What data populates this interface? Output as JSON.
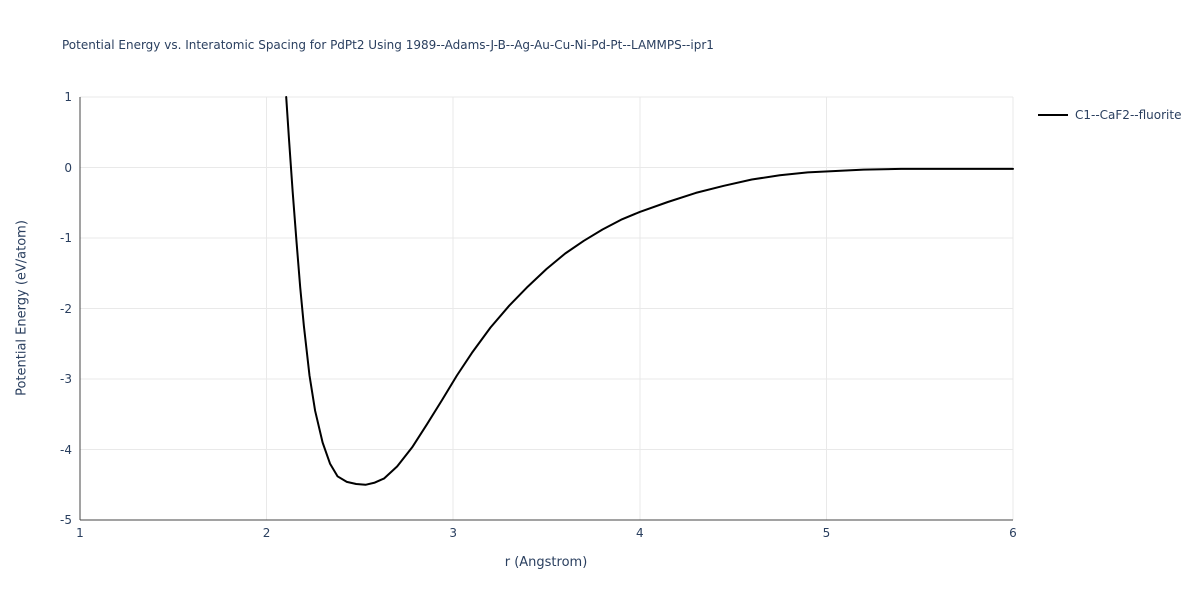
{
  "chart_data": {
    "type": "line",
    "title": "Potential Energy vs. Interatomic Spacing for PdPt2 Using 1989--Adams-J-B--Ag-Au-Cu-Ni-Pd-Pt--LAMMPS--ipr1",
    "xlabel": "r (Angstrom)",
    "ylabel": "Potential Energy (eV/atom)",
    "xlim": [
      1,
      6
    ],
    "ylim": [
      -5,
      1
    ],
    "xticks": [
      1,
      2,
      3,
      4,
      5,
      6
    ],
    "yticks": [
      1,
      0,
      -1,
      -2,
      -3,
      -4,
      -5
    ],
    "grid": true,
    "legend_position": "top-right",
    "series": [
      {
        "name": "C1--CaF2--fluorite",
        "color": "#000000",
        "x": [
          2.105,
          2.12,
          2.14,
          2.16,
          2.18,
          2.2,
          2.23,
          2.26,
          2.3,
          2.34,
          2.38,
          2.43,
          2.48,
          2.53,
          2.58,
          2.63,
          2.7,
          2.78,
          2.86,
          2.94,
          3.02,
          3.1,
          3.2,
          3.3,
          3.4,
          3.5,
          3.6,
          3.7,
          3.8,
          3.9,
          4.0,
          4.15,
          4.3,
          4.45,
          4.6,
          4.75,
          4.9,
          5.05,
          5.2,
          5.4,
          5.6,
          5.8,
          6.0
        ],
        "y": [
          1.0,
          0.4,
          -0.35,
          -1.05,
          -1.7,
          -2.25,
          -2.95,
          -3.45,
          -3.9,
          -4.2,
          -4.38,
          -4.46,
          -4.49,
          -4.5,
          -4.47,
          -4.41,
          -4.24,
          -3.97,
          -3.64,
          -3.3,
          -2.95,
          -2.63,
          -2.27,
          -1.96,
          -1.69,
          -1.44,
          -1.22,
          -1.04,
          -0.88,
          -0.74,
          -0.63,
          -0.49,
          -0.36,
          -0.26,
          -0.17,
          -0.11,
          -0.07,
          -0.05,
          -0.03,
          -0.02,
          -0.02,
          -0.02,
          -0.02
        ]
      }
    ]
  },
  "colors": {
    "text": "#2a3f5f",
    "grid": "#e9e9e9",
    "axis_line": "#444444",
    "line": "#000000",
    "background": "#ffffff"
  }
}
